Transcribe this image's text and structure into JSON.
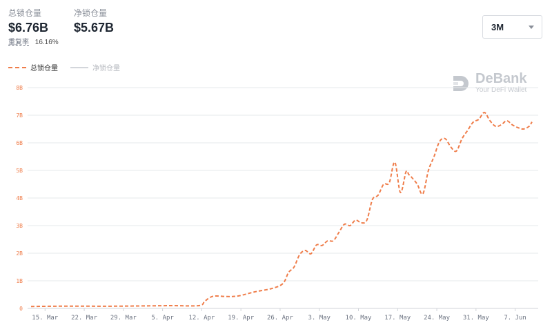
{
  "stats": {
    "total_label": "总锁仓量",
    "total_value": "$6.76B",
    "net_label": "净锁仓量",
    "net_value": "$5.67B",
    "ratio_label": "重复率",
    "ratio_value": "16.16%"
  },
  "range_select": {
    "value": "3M"
  },
  "watermark": {
    "name": "DeBank",
    "tagline": "Your DeFi Wallet"
  },
  "colors": {
    "total_line": "#ef7d4a",
    "net_line": "#d3d6db",
    "grid": "#e6e8eb",
    "axis": "#d0d3d8"
  },
  "chart_data": {
    "type": "line",
    "legend": [
      "总锁仓量",
      "净锁仓量"
    ],
    "legend_position": "top-left",
    "grid": true,
    "ylim": [
      0,
      8
    ],
    "y_ticks": [
      "0",
      "1B",
      "2B",
      "3B",
      "4B",
      "5B",
      "6B",
      "7B",
      "8B"
    ],
    "x_ticks": [
      "15. Mar",
      "22. Mar",
      "29. Mar",
      "5. Apr",
      "12. Apr",
      "19. Apr",
      "26. Apr",
      "3. May",
      "10. May",
      "17. May",
      "24. May",
      "31. May",
      "7. Jun"
    ],
    "xlim": [
      0,
      90
    ],
    "series": [
      {
        "name": "总锁仓量",
        "style": "dashed",
        "x": [
          0,
          5,
          10,
          15,
          20,
          25,
          30,
          31,
          32,
          33,
          35,
          37,
          40,
          43,
          45,
          46,
          47,
          48,
          49,
          50,
          51,
          52,
          53,
          54,
          55,
          56,
          57,
          58,
          59,
          60,
          61,
          62,
          63,
          64,
          65,
          66,
          67,
          67.5,
          68,
          69,
          70,
          71,
          72,
          73,
          74,
          75,
          76,
          77,
          78,
          79,
          80,
          81,
          82,
          83,
          84,
          85,
          86,
          87,
          88,
          89,
          89.5
        ],
        "values": [
          0.07,
          0.08,
          0.08,
          0.08,
          0.09,
          0.1,
          0.1,
          0.25,
          0.4,
          0.45,
          0.43,
          0.45,
          0.6,
          0.72,
          0.9,
          1.3,
          1.5,
          1.95,
          2.1,
          1.98,
          2.3,
          2.28,
          2.45,
          2.45,
          2.75,
          3.05,
          3.0,
          3.2,
          3.1,
          3.2,
          3.95,
          4.1,
          4.5,
          4.55,
          5.3,
          4.2,
          4.95,
          4.85,
          4.75,
          4.5,
          4.15,
          5.0,
          5.5,
          6.05,
          6.15,
          5.85,
          5.7,
          6.15,
          6.45,
          6.75,
          6.85,
          7.1,
          6.8,
          6.6,
          6.65,
          6.8,
          6.65,
          6.55,
          6.5,
          6.6,
          6.76
        ]
      },
      {
        "name": "净锁仓量",
        "hidden": true,
        "x": [],
        "values": []
      }
    ]
  }
}
